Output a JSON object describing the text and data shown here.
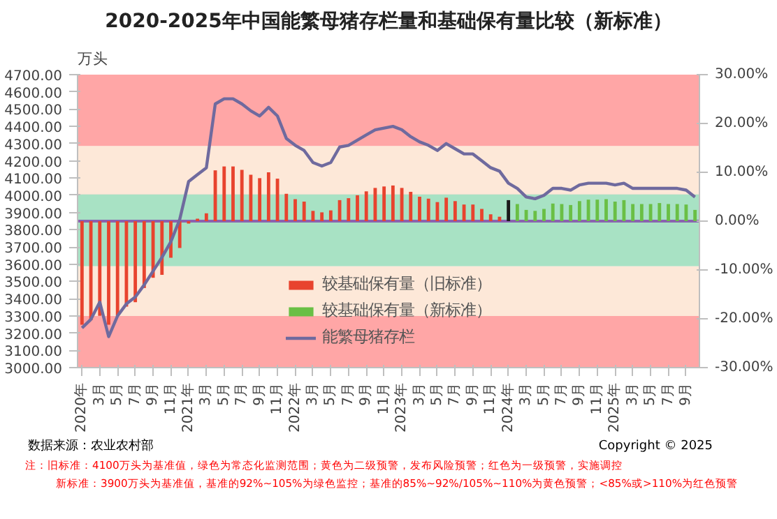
{
  "chart_data": {
    "type": "bar",
    "title": "2020-2025年中国能繁母猪存栏量和基础保有量比较（新标准）",
    "ylabel": "万头",
    "categories": [
      "2020年",
      null,
      "3月",
      null,
      "5月",
      null,
      "7月",
      null,
      "9月",
      null,
      "11月",
      null,
      "2021年",
      null,
      "3月",
      null,
      "5月",
      null,
      "7月",
      null,
      "9月",
      null,
      "11月",
      null,
      "2022年",
      null,
      "3月",
      null,
      "5月",
      null,
      "7月",
      null,
      "9月",
      null,
      "11月",
      null,
      "2023年",
      null,
      "3月",
      null,
      "5月",
      null,
      "7月",
      null,
      "9月",
      null,
      "11月",
      null,
      "2024年",
      null,
      "3月",
      null,
      "5月",
      null,
      "7月",
      null,
      "9月",
      null,
      "11月",
      null,
      "2025年",
      null,
      "3月",
      null,
      "5月",
      null,
      "7月",
      null,
      "9月",
      null
    ],
    "series": [
      {
        "name": "较基础保有量（旧标准）",
        "axis": "y2",
        "color": "#e8432e",
        "values": [
          -21.2,
          -20.3,
          -19.4,
          -21.2,
          -19.4,
          -17.5,
          -16.6,
          -13.7,
          -11.6,
          -11.0,
          -7.5,
          -5.5,
          -0.5,
          0.5,
          1.6,
          10.4,
          11.2,
          11.2,
          10.5,
          9.5,
          8.8,
          10.0,
          8.7,
          5.6,
          4.5,
          4.0,
          2.1,
          1.8,
          2.2,
          4.3,
          4.7,
          5.3,
          6.1,
          6.8,
          7.1,
          7.3,
          6.8,
          6.0,
          5.0,
          4.6,
          3.9,
          4.8,
          4.1,
          3.4,
          3.4,
          2.5,
          1.4,
          0.9,
          null,
          null,
          null,
          null,
          null,
          null,
          null,
          null,
          null,
          null,
          null,
          null,
          null,
          null,
          null,
          null,
          null,
          null,
          null,
          null,
          null,
          null
        ]
      },
      {
        "name": "较基础保有量（新标准）",
        "axis": "y2",
        "color": "#6abf45",
        "colors": [
          "#6abf45",
          "#6abf45",
          "#6abf45",
          "#6abf45",
          "#6abf45",
          "#6abf45",
          "#6abf45",
          "#6abf45",
          "#6abf45",
          "#6abf45",
          "#6abf45",
          "#6abf45",
          "#6abf45",
          "#6abf45",
          "#6abf45",
          "#6abf45",
          "#6abf45",
          "#6abf45",
          "#6abf45",
          "#6abf45",
          "#6abf45",
          "#6abf45",
          "#6abf45",
          "#6abf45",
          "#6abf45",
          "#6abf45",
          "#6abf45",
          "#6abf45",
          "#6abf45",
          "#6abf45",
          "#6abf45",
          "#6abf45",
          "#6abf45",
          "#6abf45",
          "#6abf45",
          "#6abf45",
          "#6abf45",
          "#6abf45",
          "#6abf45",
          "#6abf45",
          "#6abf45",
          "#6abf45",
          "#6abf45",
          "#6abf45",
          "#6abf45",
          "#6abf45",
          "#6abf45",
          "#6abf45",
          "#1a1a1a",
          "#6abf45",
          "#6abf45",
          "#6abf45",
          "#6abf45",
          "#6abf45",
          "#6abf45",
          "#6abf45",
          "#6abf45",
          "#6abf45",
          "#6abf45",
          "#6abf45",
          "#6abf45",
          "#6abf45",
          "#6abf45",
          "#6abf45",
          "#6abf45",
          "#6abf45",
          "#6abf45",
          "#6abf45",
          "#6abf45",
          "#6abf45"
        ],
        "values": [
          null,
          null,
          null,
          null,
          null,
          null,
          null,
          null,
          null,
          null,
          null,
          null,
          null,
          null,
          null,
          null,
          null,
          null,
          null,
          null,
          null,
          null,
          null,
          null,
          null,
          null,
          null,
          null,
          null,
          null,
          null,
          null,
          null,
          null,
          null,
          null,
          null,
          null,
          null,
          null,
          null,
          null,
          null,
          null,
          null,
          null,
          null,
          null,
          4.3,
          3.5,
          2.3,
          2.1,
          2.5,
          3.6,
          3.5,
          3.3,
          4.1,
          4.4,
          4.4,
          4.5,
          4.0,
          4.3,
          3.5,
          3.5,
          3.5,
          3.7,
          3.5,
          3.5,
          3.4,
          2.3
        ]
      },
      {
        "name": "能繁母猪存栏",
        "type": "line",
        "axis": "y",
        "color": "#6f6a9e",
        "values": [
          3230,
          3280,
          3380,
          3180,
          3300,
          3370,
          3410,
          3480,
          3560,
          3640,
          3730,
          3860,
          4080,
          4120,
          4160,
          4530,
          4560,
          4560,
          4530,
          4490,
          4460,
          4510,
          4460,
          4330,
          4290,
          4260,
          4190,
          4170,
          4190,
          4280,
          4290,
          4320,
          4350,
          4380,
          4390,
          4400,
          4380,
          4340,
          4310,
          4290,
          4260,
          4300,
          4270,
          4240,
          4240,
          4200,
          4160,
          4140,
          4070,
          4040,
          3990,
          3980,
          4000,
          4040,
          4040,
          4030,
          4060,
          4070,
          4070,
          4070,
          4060,
          4070,
          4040,
          4040,
          4040,
          4040,
          4040,
          4040,
          4030,
          3990
        ]
      }
    ],
    "ylim": [
      3000,
      4700
    ],
    "yticks": [
      {
        "value": 3000,
        "label": "3000.00"
      },
      {
        "value": 3100,
        "label": "3100.00"
      },
      {
        "value": 3200,
        "label": "3200.00"
      },
      {
        "value": 3300,
        "label": "3300.00"
      },
      {
        "value": 3400,
        "label": "3400.00"
      },
      {
        "value": 3500,
        "label": "3500.00"
      },
      {
        "value": 3600,
        "label": "3600.00"
      },
      {
        "value": 3700,
        "label": "3700.00"
      },
      {
        "value": 3800,
        "label": "3800.00"
      },
      {
        "value": 3900,
        "label": "3900.00"
      },
      {
        "value": 4000,
        "label": "4000.00"
      },
      {
        "value": 4100,
        "label": "4100.00"
      },
      {
        "value": 4200,
        "label": "4200.00"
      },
      {
        "value": 4300,
        "label": "4300.00"
      },
      {
        "value": 4400,
        "label": "4400.00"
      },
      {
        "value": 4500,
        "label": "4500.00"
      },
      {
        "value": 4600,
        "label": "4600.00"
      },
      {
        "value": 4700,
        "label": "4700.00"
      }
    ],
    "y2lim": [
      -30,
      30
    ],
    "y2ticks": [
      {
        "value": -30,
        "label": "-30.00%"
      },
      {
        "value": -20,
        "label": "-20.00%"
      },
      {
        "value": -10,
        "label": "-10.00%"
      },
      {
        "value": 0,
        "label": "0.00%"
      },
      {
        "value": 10,
        "label": "10.00%"
      },
      {
        "value": 20,
        "label": "20.00%"
      },
      {
        "value": 30,
        "label": "30.00%"
      }
    ],
    "bands": [
      {
        "axis": "y",
        "from": 4285,
        "to": 4700,
        "color": "#ffa6a6"
      },
      {
        "axis": "y",
        "from": 4005,
        "to": 4285,
        "color": "#fde8d8"
      },
      {
        "axis": "y",
        "from": 3588,
        "to": 4005,
        "color": "#a8e2c4"
      },
      {
        "axis": "y",
        "from": 3300,
        "to": 3588,
        "color": "#fde8d8"
      },
      {
        "axis": "y",
        "from": 3000,
        "to": 3300,
        "color": "#ffa6a6"
      }
    ],
    "ref_lines": [
      {
        "axis": "y2",
        "value": 0,
        "color": "#8a62b0"
      }
    ],
    "grid": "y",
    "legend": "bottom",
    "annotations": [
      "数据来源：农业农村部",
      "Copyright © 2025",
      "注：旧标准：4100万头为基准值，绿色为常态化监测范围；黄色为二级预警，发布风险预警；红色为一级预警，实施调控",
      "新标准：3900万头为基准值，基准的92%~105%为绿色监控；基准的85%~92%/105%~110%为黄色预警；<85%或>110%为红色预警"
    ]
  }
}
